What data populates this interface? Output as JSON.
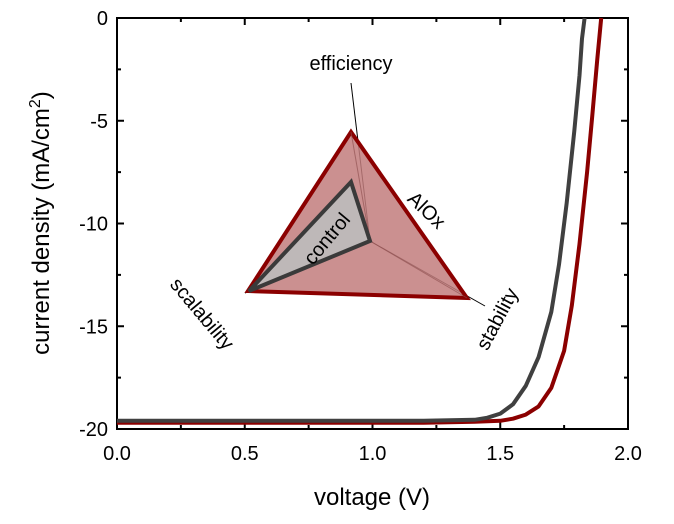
{
  "chart_data": {
    "type": "line",
    "xlabel": "voltage (V)",
    "ylabel_main": "current density (mA/cm",
    "ylabel_sup": "2",
    "ylabel_close": ")",
    "xlim": [
      0.0,
      2.0
    ],
    "ylim": [
      -20,
      0
    ],
    "x_ticks": [
      "0.0",
      "0.5",
      "1.0",
      "1.5",
      "2.0"
    ],
    "x_tick_values": [
      0.0,
      0.5,
      1.0,
      1.5,
      2.0
    ],
    "y_ticks": [
      "0",
      "-5",
      "-10",
      "-15",
      "-20"
    ],
    "y_tick_values": [
      0,
      -5,
      -10,
      -15,
      -20
    ],
    "series": [
      {
        "color": "#8b0000",
        "points": [
          [
            0.0,
            -19.7
          ],
          [
            1.2,
            -19.7
          ],
          [
            1.4,
            -19.65
          ],
          [
            1.5,
            -19.6
          ],
          [
            1.55,
            -19.5
          ],
          [
            1.6,
            -19.3
          ],
          [
            1.65,
            -18.9
          ],
          [
            1.7,
            -18.0
          ],
          [
            1.75,
            -16.2
          ],
          [
            1.78,
            -14.0
          ],
          [
            1.81,
            -11.0
          ],
          [
            1.84,
            -7.5
          ],
          [
            1.86,
            -4.8
          ],
          [
            1.88,
            -2.0
          ],
          [
            1.895,
            0.0
          ]
        ]
      },
      {
        "color": "#404040",
        "points": [
          [
            0.0,
            -19.6
          ],
          [
            1.2,
            -19.6
          ],
          [
            1.4,
            -19.55
          ],
          [
            1.45,
            -19.45
          ],
          [
            1.5,
            -19.25
          ],
          [
            1.55,
            -18.8
          ],
          [
            1.6,
            -17.9
          ],
          [
            1.65,
            -16.5
          ],
          [
            1.7,
            -14.3
          ],
          [
            1.73,
            -12.0
          ],
          [
            1.76,
            -9.0
          ],
          [
            1.79,
            -5.5
          ],
          [
            1.81,
            -2.8
          ],
          [
            1.82,
            -1.0
          ],
          [
            1.83,
            0.0
          ]
        ]
      }
    ],
    "inset": {
      "axis_labels": {
        "top": "efficiency",
        "left": "scalability",
        "right": "stability"
      },
      "series_labels": {
        "outer": "AlOx",
        "inner": "control"
      },
      "colors": {
        "outer_fill": "#c27c7c",
        "outer_stroke": "#8b0000",
        "inner_fill": "#bdbdbd",
        "inner_stroke": "#3a3a3a",
        "outer_label": "#8b0000"
      }
    }
  }
}
